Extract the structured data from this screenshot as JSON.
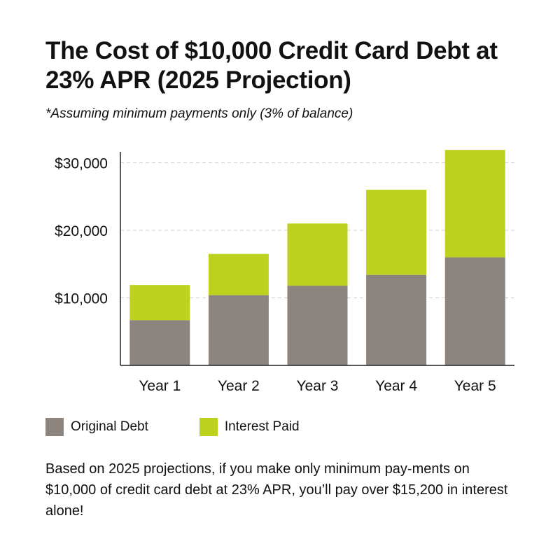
{
  "title": "The Cost of $10,000 Credit Card Debt at 23% APR (2025 Projection)",
  "subtitle": "*Assuming minimum payments only (3% of balance)",
  "colors": {
    "original_debt": "#8c847e",
    "interest_paid": "#bdd21f",
    "gridline": "#cfcfcf",
    "axis": "#222222"
  },
  "legend": {
    "original_debt_label": "Original Debt",
    "interest_paid_label": "Interest Paid"
  },
  "note": "Based on 2025 projections, if you make only minimum pay-ments on $10,000 of credit card debt at 23% APR, you’ll pay over $15,200 in interest alone!",
  "chart_data": {
    "type": "bar",
    "stacked": true,
    "categories": [
      "Year 1",
      "Year 2",
      "Year 3",
      "Year 4",
      "Year 5"
    ],
    "series": [
      {
        "name": "Original Debt",
        "values": [
          6700,
          10400,
          11800,
          13400,
          16000
        ]
      },
      {
        "name": "Interest Paid",
        "values": [
          5200,
          6100,
          9200,
          12600,
          15900
        ]
      }
    ],
    "yticks": [
      10000,
      20000,
      30000
    ],
    "ytick_labels": [
      "$10,000",
      "$20,000",
      "$30,000"
    ],
    "ylim": [
      0,
      31600
    ],
    "grid": true,
    "legend_position": "bottom-left"
  }
}
